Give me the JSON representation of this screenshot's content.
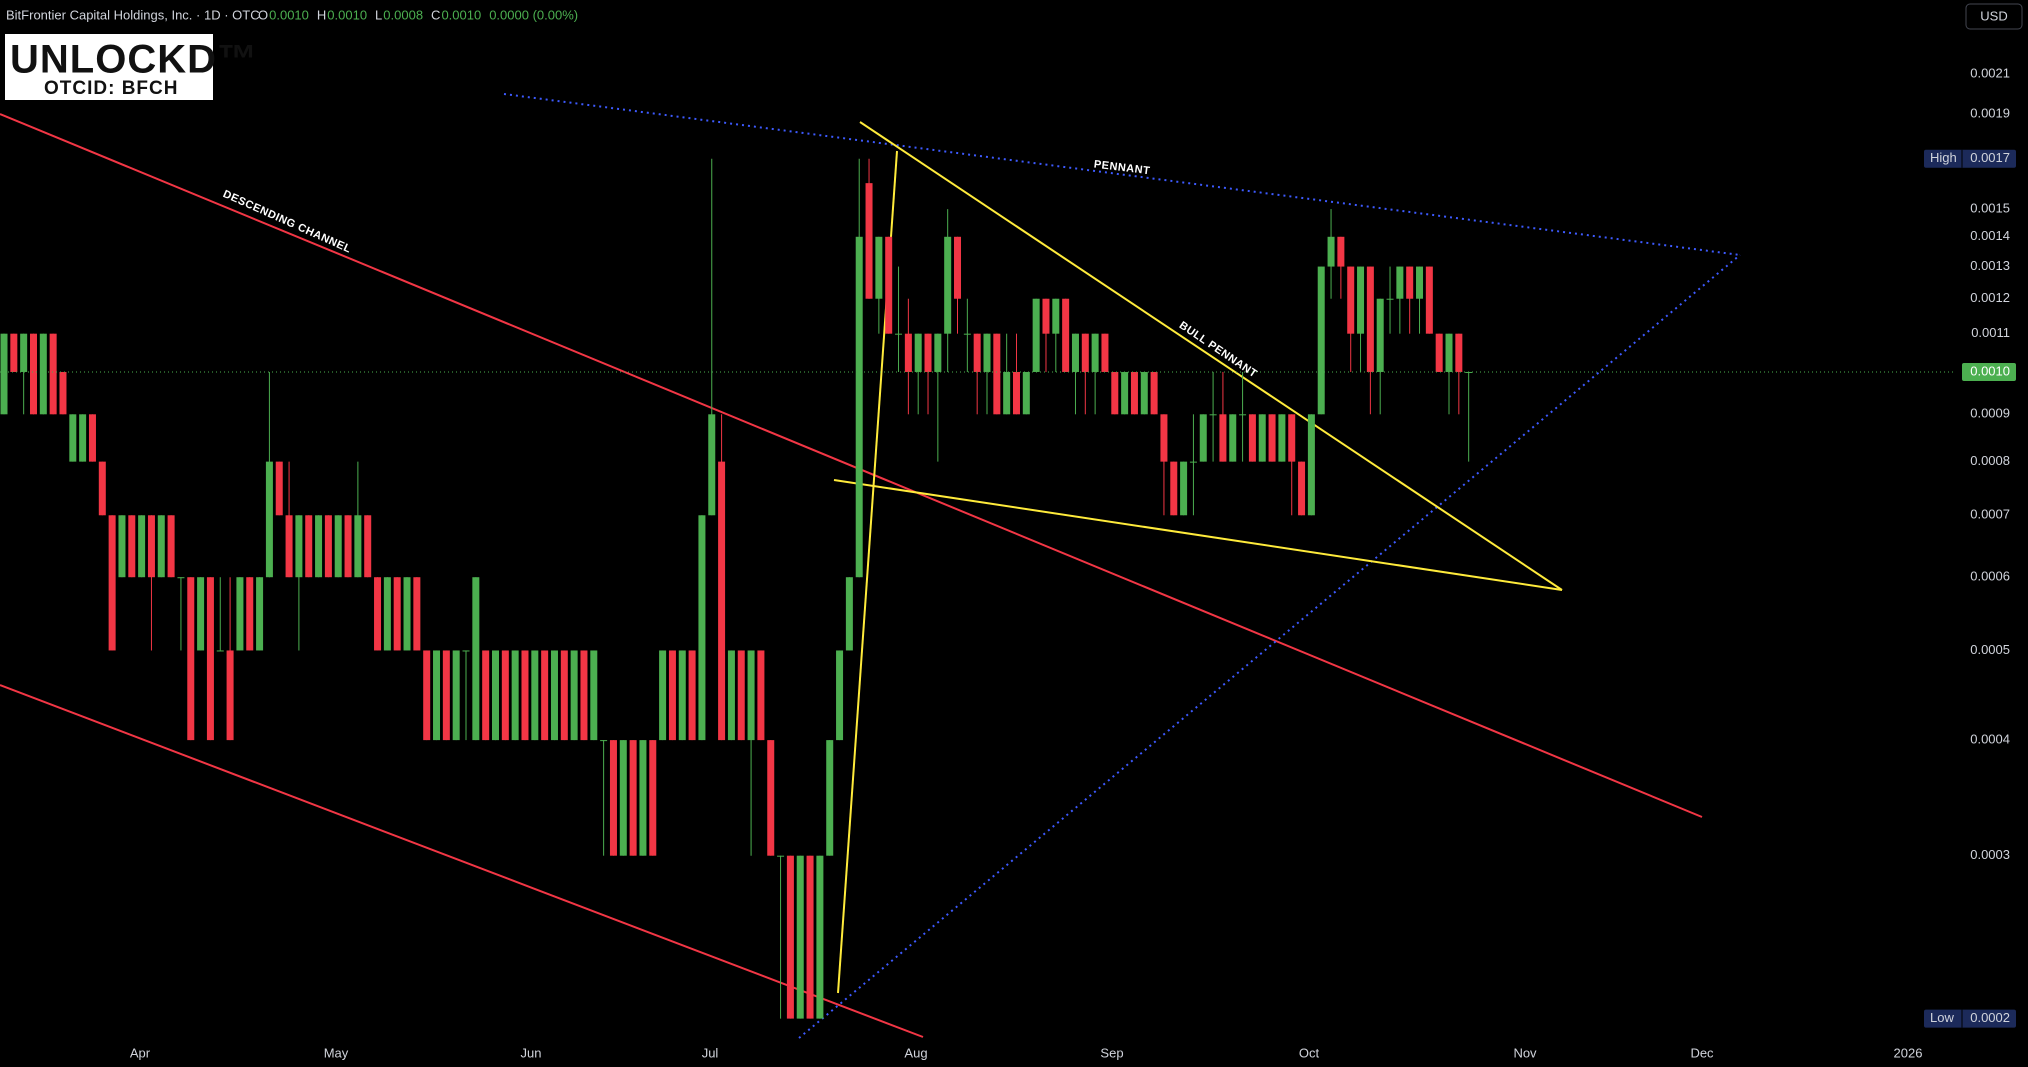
{
  "logo": {
    "name": "UNLOCKD™",
    "ticker": "OTCID: BFCH"
  },
  "chart_data": {
    "type": "candlestick",
    "title": "BitFrontier Capital Holdings, Inc. · 1D · OTC",
    "header_fields": [
      {
        "key": "O",
        "value": "0.0010"
      },
      {
        "key": "H",
        "value": "0.0010"
      },
      {
        "key": "L",
        "value": "0.0008"
      },
      {
        "key": "C",
        "value": "0.0010"
      }
    ],
    "header_change": "0.0000 (0.00%)",
    "currency": "USD",
    "annotations": [
      "DESCENDING CHANNEL",
      "PENNANT",
      "BULL PENNANT"
    ],
    "log_scale": true,
    "grid": false,
    "up_color": "#4caf50",
    "down_color": "#f23645",
    "ylim": [
      0.000192,
      0.002524
    ],
    "yticks": [
      0.0021,
      0.0019,
      0.0015,
      0.0014,
      0.0013,
      0.0012,
      0.0011,
      0.0009,
      0.0008,
      0.0007,
      0.0006,
      0.0005,
      0.0004,
      0.0003
    ],
    "x_labels": [
      "Apr",
      "May",
      "Jun",
      "Jul",
      "Aug",
      "Sep",
      "Oct",
      "Nov",
      "Dec",
      "2026"
    ],
    "high_label": "High",
    "high": 0.0017,
    "low_label": "Low",
    "low": 0.0002,
    "last_price": {
      "value": 0.001,
      "label": "0.0010"
    },
    "ohlc": [
      [
        0.0009,
        0.0011,
        0.0009,
        0.0011
      ],
      [
        0.0011,
        0.0011,
        0.001,
        0.001
      ],
      [
        0.001,
        0.0011,
        0.0009,
        0.0011
      ],
      [
        0.0011,
        0.0011,
        0.0009,
        0.0009
      ],
      [
        0.0009,
        0.0011,
        0.0009,
        0.0011
      ],
      [
        0.0011,
        0.0011,
        0.0009,
        0.0009
      ],
      [
        0.001,
        0.001,
        0.0009,
        0.0009
      ],
      [
        0.0008,
        0.0009,
        0.0008,
        0.0009
      ],
      [
        0.0008,
        0.0009,
        0.0008,
        0.0009
      ],
      [
        0.0009,
        0.0009,
        0.0008,
        0.0008
      ],
      [
        0.0008,
        0.0008,
        0.0007,
        0.0007
      ],
      [
        0.0007,
        0.0007,
        0.0005,
        0.0005
      ],
      [
        0.0006,
        0.0007,
        0.0006,
        0.0007
      ],
      [
        0.0007,
        0.0007,
        0.0006,
        0.0006
      ],
      [
        0.0006,
        0.0007,
        0.0006,
        0.0007
      ],
      [
        0.0007,
        0.0007,
        0.0005,
        0.0006
      ],
      [
        0.0006,
        0.0007,
        0.0006,
        0.0007
      ],
      [
        0.0007,
        0.0007,
        0.0006,
        0.0006
      ],
      [
        0.0006,
        0.0006,
        0.0005,
        0.0006
      ],
      [
        0.0006,
        0.0006,
        0.0004,
        0.0004
      ],
      [
        0.0005,
        0.0006,
        0.0005,
        0.0006
      ],
      [
        0.0006,
        0.0006,
        0.0004,
        0.0004
      ],
      [
        0.0005,
        0.0006,
        0.0005,
        0.0005
      ],
      [
        0.0005,
        0.0006,
        0.0004,
        0.0004
      ],
      [
        0.0005,
        0.0006,
        0.0005,
        0.0006
      ],
      [
        0.0006,
        0.0006,
        0.0005,
        0.0005
      ],
      [
        0.0005,
        0.0006,
        0.0005,
        0.0006
      ],
      [
        0.0006,
        0.001,
        0.0006,
        0.0008
      ],
      [
        0.0008,
        0.0008,
        0.0007,
        0.0007
      ],
      [
        0.0007,
        0.0008,
        0.0006,
        0.0006
      ],
      [
        0.0006,
        0.0007,
        0.0005,
        0.0007
      ],
      [
        0.0007,
        0.0007,
        0.0006,
        0.0006
      ],
      [
        0.0006,
        0.0007,
        0.0006,
        0.0007
      ],
      [
        0.0007,
        0.0007,
        0.0006,
        0.0006
      ],
      [
        0.0006,
        0.0007,
        0.0006,
        0.0007
      ],
      [
        0.0007,
        0.0007,
        0.0006,
        0.0006
      ],
      [
        0.0006,
        0.0008,
        0.0006,
        0.0007
      ],
      [
        0.0007,
        0.0007,
        0.0006,
        0.0006
      ],
      [
        0.0006,
        0.0006,
        0.0005,
        0.0005
      ],
      [
        0.0005,
        0.0006,
        0.0005,
        0.0006
      ],
      [
        0.0006,
        0.0006,
        0.0005,
        0.0005
      ],
      [
        0.0005,
        0.0006,
        0.0005,
        0.0006
      ],
      [
        0.0006,
        0.0006,
        0.0005,
        0.0005
      ],
      [
        0.0005,
        0.0005,
        0.0004,
        0.0004
      ],
      [
        0.0004,
        0.0005,
        0.0004,
        0.0005
      ],
      [
        0.0005,
        0.0005,
        0.0004,
        0.0004
      ],
      [
        0.0004,
        0.0005,
        0.0004,
        0.0005
      ],
      [
        0.0005,
        0.0005,
        0.0004,
        0.0005
      ],
      [
        0.0004,
        0.0006,
        0.0004,
        0.0006
      ],
      [
        0.0005,
        0.0005,
        0.0004,
        0.0004
      ],
      [
        0.0004,
        0.0005,
        0.0004,
        0.0005
      ],
      [
        0.0005,
        0.0005,
        0.0004,
        0.0004
      ],
      [
        0.0004,
        0.0005,
        0.0004,
        0.0005
      ],
      [
        0.0005,
        0.0005,
        0.0004,
        0.0004
      ],
      [
        0.0004,
        0.0005,
        0.0004,
        0.0005
      ],
      [
        0.0005,
        0.0005,
        0.0004,
        0.0004
      ],
      [
        0.0004,
        0.0005,
        0.0004,
        0.0005
      ],
      [
        0.0005,
        0.0005,
        0.0004,
        0.0004
      ],
      [
        0.0004,
        0.0005,
        0.0004,
        0.0005
      ],
      [
        0.0005,
        0.0005,
        0.0004,
        0.0004
      ],
      [
        0.0004,
        0.0005,
        0.0004,
        0.0005
      ],
      [
        0.0004,
        0.0004,
        0.0003,
        0.0004
      ],
      [
        0.0004,
        0.0004,
        0.0003,
        0.0003
      ],
      [
        0.0003,
        0.0004,
        0.0003,
        0.0004
      ],
      [
        0.0004,
        0.0004,
        0.0003,
        0.0003
      ],
      [
        0.0003,
        0.0004,
        0.0003,
        0.0004
      ],
      [
        0.0004,
        0.0004,
        0.0003,
        0.0003
      ],
      [
        0.0004,
        0.0005,
        0.0004,
        0.0005
      ],
      [
        0.0005,
        0.0005,
        0.0004,
        0.0004
      ],
      [
        0.0004,
        0.0005,
        0.0004,
        0.0005
      ],
      [
        0.0005,
        0.0005,
        0.0004,
        0.0004
      ],
      [
        0.0004,
        0.0007,
        0.0004,
        0.0007
      ],
      [
        0.0007,
        0.0017,
        0.0007,
        0.0009
      ],
      [
        0.0008,
        0.0009,
        0.0004,
        0.0004
      ],
      [
        0.0004,
        0.0005,
        0.0004,
        0.0005
      ],
      [
        0.0005,
        0.0005,
        0.0004,
        0.0004
      ],
      [
        0.0004,
        0.0005,
        0.0003,
        0.0005
      ],
      [
        0.0005,
        0.0005,
        0.0004,
        0.0004
      ],
      [
        0.0004,
        0.0004,
        0.0003,
        0.0003
      ],
      [
        0.0003,
        0.0003,
        0.0002,
        0.0003
      ],
      [
        0.0003,
        0.0003,
        0.0002,
        0.0002
      ],
      [
        0.0002,
        0.0003,
        0.0002,
        0.0003
      ],
      [
        0.0003,
        0.0003,
        0.0002,
        0.0002
      ],
      [
        0.0002,
        0.0003,
        0.0002,
        0.0003
      ],
      [
        0.0003,
        0.0004,
        0.0003,
        0.0004
      ],
      [
        0.0004,
        0.0005,
        0.0004,
        0.0005
      ],
      [
        0.0005,
        0.0006,
        0.0005,
        0.0006
      ],
      [
        0.0006,
        0.0017,
        0.0006,
        0.0014
      ],
      [
        0.0016,
        0.0017,
        0.0012,
        0.0012
      ],
      [
        0.0012,
        0.0014,
        0.0011,
        0.0014
      ],
      [
        0.0014,
        0.0014,
        0.0011,
        0.0011
      ],
      [
        0.0011,
        0.0013,
        0.001,
        0.0011
      ],
      [
        0.0011,
        0.0012,
        0.0009,
        0.001
      ],
      [
        0.001,
        0.0011,
        0.0009,
        0.0011
      ],
      [
        0.0011,
        0.0011,
        0.0009,
        0.001
      ],
      [
        0.001,
        0.0011,
        0.0008,
        0.0011
      ],
      [
        0.0011,
        0.0015,
        0.001,
        0.0014
      ],
      [
        0.0014,
        0.0014,
        0.0011,
        0.0012
      ],
      [
        0.0011,
        0.0012,
        0.001,
        0.0011
      ],
      [
        0.0011,
        0.0011,
        0.0009,
        0.001
      ],
      [
        0.001,
        0.0011,
        0.0009,
        0.0011
      ],
      [
        0.0011,
        0.0011,
        0.0009,
        0.0009
      ],
      [
        0.0009,
        0.0011,
        0.0009,
        0.001
      ],
      [
        0.001,
        0.0011,
        0.0009,
        0.0009
      ],
      [
        0.0009,
        0.001,
        0.0009,
        0.001
      ],
      [
        0.001,
        0.0012,
        0.001,
        0.0012
      ],
      [
        0.0012,
        0.0012,
        0.001,
        0.0011
      ],
      [
        0.0011,
        0.0012,
        0.001,
        0.0012
      ],
      [
        0.0012,
        0.0012,
        0.001,
        0.001
      ],
      [
        0.001,
        0.0011,
        0.0009,
        0.0011
      ],
      [
        0.0011,
        0.0011,
        0.0009,
        0.001
      ],
      [
        0.001,
        0.0011,
        0.0009,
        0.0011
      ],
      [
        0.0011,
        0.0011,
        0.001,
        0.001
      ],
      [
        0.001,
        0.001,
        0.0009,
        0.0009
      ],
      [
        0.0009,
        0.001,
        0.0009,
        0.001
      ],
      [
        0.001,
        0.001,
        0.0009,
        0.0009
      ],
      [
        0.0009,
        0.001,
        0.0009,
        0.001
      ],
      [
        0.001,
        0.001,
        0.0009,
        0.0009
      ],
      [
        0.0009,
        0.0009,
        0.0007,
        0.0008
      ],
      [
        0.0008,
        0.0008,
        0.0007,
        0.0007
      ],
      [
        0.0007,
        0.0008,
        0.0007,
        0.0008
      ],
      [
        0.0008,
        0.0009,
        0.0007,
        0.0008
      ],
      [
        0.0008,
        0.0009,
        0.0008,
        0.0009
      ],
      [
        0.0009,
        0.001,
        0.0008,
        0.0009
      ],
      [
        0.0009,
        0.001,
        0.0008,
        0.0008
      ],
      [
        0.0008,
        0.0009,
        0.0008,
        0.0009
      ],
      [
        0.0009,
        0.001,
        0.0008,
        0.0009
      ],
      [
        0.0009,
        0.0009,
        0.0008,
        0.0008
      ],
      [
        0.0008,
        0.0009,
        0.0008,
        0.0009
      ],
      [
        0.0009,
        0.0009,
        0.0008,
        0.0008
      ],
      [
        0.0008,
        0.0009,
        0.0008,
        0.0009
      ],
      [
        0.0009,
        0.0009,
        0.0007,
        0.0008
      ],
      [
        0.0008,
        0.0008,
        0.0007,
        0.0007
      ],
      [
        0.0007,
        0.0009,
        0.0007,
        0.0009
      ],
      [
        0.0009,
        0.0013,
        0.0009,
        0.0013
      ],
      [
        0.0013,
        0.0015,
        0.0012,
        0.0014
      ],
      [
        0.0014,
        0.0014,
        0.0012,
        0.0013
      ],
      [
        0.0013,
        0.0013,
        0.001,
        0.0011
      ],
      [
        0.0011,
        0.0013,
        0.001,
        0.0013
      ],
      [
        0.0013,
        0.0013,
        0.0009,
        0.001
      ],
      [
        0.001,
        0.0012,
        0.0009,
        0.0012
      ],
      [
        0.0012,
        0.0013,
        0.0011,
        0.0012
      ],
      [
        0.0012,
        0.0013,
        0.0011,
        0.0013
      ],
      [
        0.0013,
        0.0013,
        0.0011,
        0.0012
      ],
      [
        0.0012,
        0.0013,
        0.0011,
        0.0013
      ],
      [
        0.0013,
        0.0013,
        0.0011,
        0.0011
      ],
      [
        0.0011,
        0.0011,
        0.001,
        0.001
      ],
      [
        0.001,
        0.0011,
        0.0009,
        0.0011
      ],
      [
        0.0011,
        0.0011,
        0.0009,
        0.001
      ],
      [
        0.001,
        0.001,
        0.0008,
        0.001
      ]
    ]
  }
}
